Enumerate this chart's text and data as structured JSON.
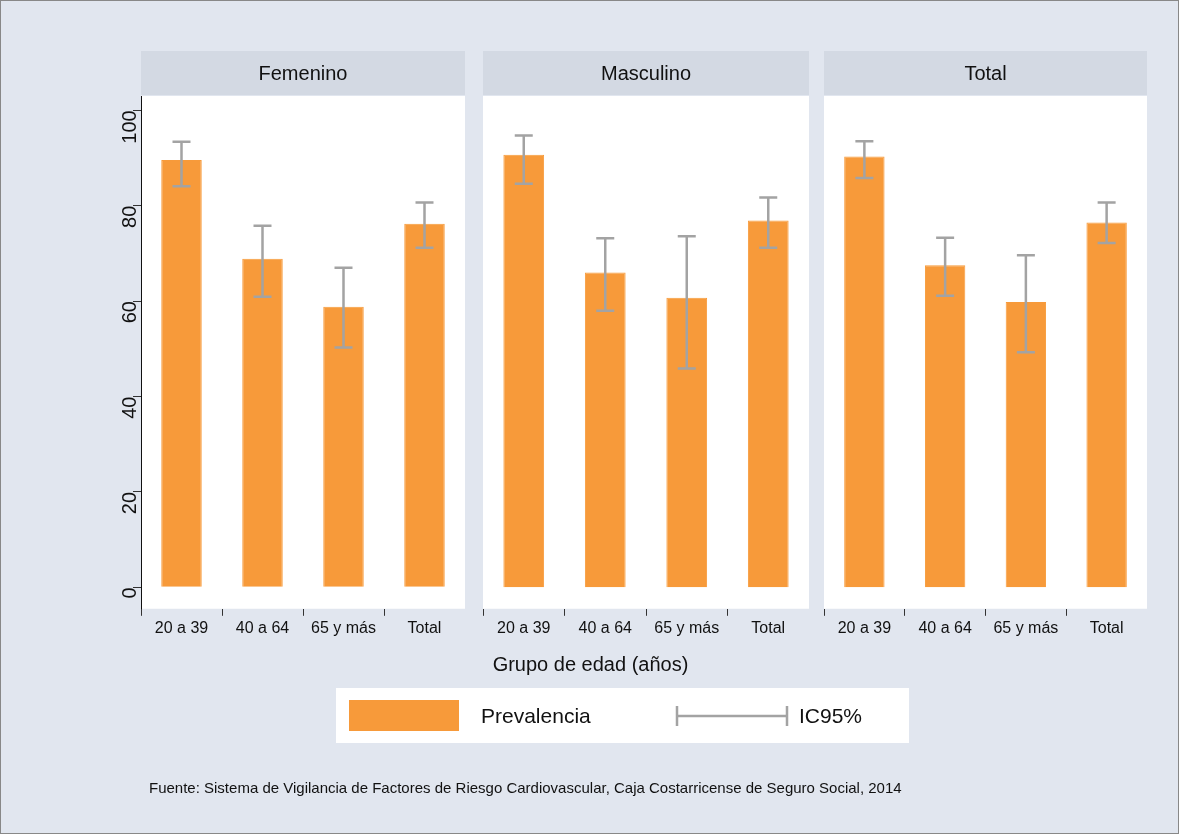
{
  "chart_data": [
    {
      "type": "bar",
      "title": "Femenino",
      "xlabel": "Grupo de edad (años)",
      "categories": [
        "20 a 39",
        "40 a 64",
        "65 y más",
        "Total"
      ],
      "series": [
        {
          "name": "Prevalencia",
          "color": "#f79a3a",
          "values": [
            89.6,
            68.9,
            58.8,
            76.2
          ],
          "errors": [
            [
              84.1,
              93.4
            ],
            [
              60.9,
              75.8
            ],
            [
              50.3,
              67.0
            ],
            [
              71.2,
              80.7
            ]
          ]
        }
      ],
      "ylim": [
        -4.5,
        103
      ],
      "yticks": [
        0,
        20,
        40,
        60,
        80,
        100
      ],
      "grid": false,
      "legend": "bottom",
      "annotations": [
        "IC95%",
        "Fuente:  Sistema de Vigilancia de Factores de Riesgo Cardiovascular, Caja Costarricense de Seguro Social, 2014"
      ]
    },
    {
      "type": "bar",
      "title": "Masculino",
      "categories": [
        "20 a 39",
        "40 a 64",
        "65 y más",
        "Total"
      ],
      "series": [
        {
          "color": "#f79a3a",
          "values": [
            90.7,
            66.0,
            60.7,
            76.9
          ],
          "errors": [
            [
              84.6,
              94.7
            ],
            [
              58.0,
              73.2
            ],
            [
              45.9,
              73.6
            ],
            [
              71.2,
              81.7
            ]
          ]
        }
      ],
      "ylim": [
        -4.5,
        103
      ],
      "yticks": [
        0,
        20,
        40,
        60,
        80,
        100
      ],
      "grid": false,
      "tick_labels": "x"
    },
    {
      "type": "bar",
      "title": "Total",
      "categories": [
        "20 a 39",
        "40 a 64",
        "65 y más",
        "Total"
      ],
      "series": [
        {
          "color": "#f79a3a",
          "values": [
            90.3,
            67.5,
            59.8,
            76.5
          ],
          "errors": [
            [
              85.8,
              93.5
            ],
            [
              61.1,
              73.3
            ],
            [
              49.3,
              69.6
            ],
            [
              72.2,
              80.7
            ]
          ]
        }
      ],
      "ylim": [
        -4.5,
        103
      ],
      "yticks": [
        0,
        20,
        40,
        60,
        80,
        100
      ],
      "grid": false,
      "tick_labels": "x"
    }
  ]
}
